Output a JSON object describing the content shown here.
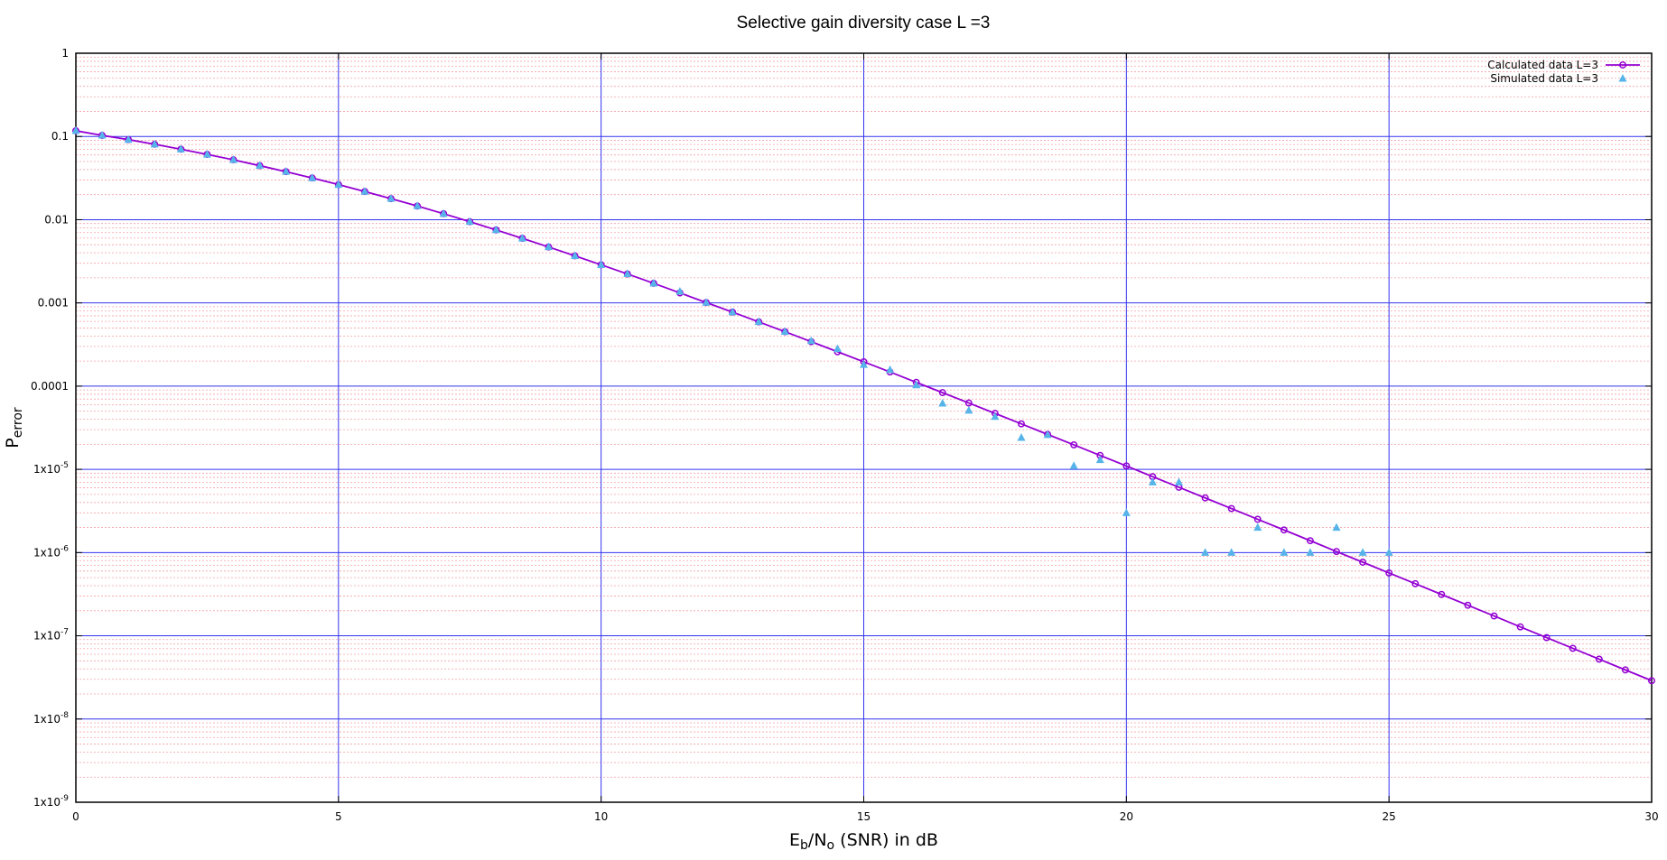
{
  "chart_data": {
    "type": "line",
    "title": "Selective gain diversity case L =3",
    "xlabel": {
      "main": "E",
      "sub1": "b",
      "mid": "/N",
      "sub2": "o",
      "rest": " (SNR) in dB"
    },
    "ylabel": {
      "main": "P",
      "sub": "error"
    },
    "xlim": [
      0,
      30
    ],
    "ylim": [
      1e-09,
      1
    ],
    "yscale": "log",
    "grid": true,
    "legend_position": "top-right",
    "x_ticks": [
      "0",
      "5",
      "10",
      "15",
      "20",
      "25",
      "30"
    ],
    "y_ticks": [
      {
        "base": "1",
        "exp": ""
      },
      {
        "base": "0.1",
        "exp": ""
      },
      {
        "base": "0.01",
        "exp": ""
      },
      {
        "base": "0.001",
        "exp": ""
      },
      {
        "base": "0.0001",
        "exp": ""
      },
      {
        "base": "1x10",
        "exp": "-5"
      },
      {
        "base": "1x10",
        "exp": "-6"
      },
      {
        "base": "1x10",
        "exp": "-7"
      },
      {
        "base": "1x10",
        "exp": "-8"
      },
      {
        "base": "1x10",
        "exp": "-9"
      }
    ],
    "colors": {
      "calculated": "#9400d3",
      "simulated": "#56b4e9",
      "major_grid": "#3333ee",
      "minor_grid": "#f4a0a8"
    },
    "series": [
      {
        "name": "Calculated data L=3",
        "style": "line-circle",
        "x": [
          0,
          0.5,
          1,
          1.5,
          2,
          2.5,
          3,
          3.5,
          4,
          4.5,
          5,
          5.5,
          6,
          6.5,
          7,
          7.5,
          8,
          8.5,
          9,
          9.5,
          10,
          10.5,
          11,
          11.5,
          12,
          12.5,
          13,
          13.5,
          14,
          14.5,
          15,
          15.5,
          16,
          16.5,
          17,
          17.5,
          18,
          18.5,
          19,
          19.5,
          20,
          20.5,
          21,
          21.5,
          22,
          22.5,
          23,
          23.5,
          24,
          24.5,
          25,
          25.5,
          26,
          26.5,
          27,
          27.5,
          28,
          28.5,
          29,
          29.5,
          30
        ],
        "y": [
          0.117,
          0.103,
          0.0917,
          0.0806,
          0.0703,
          0.0609,
          0.0524,
          0.0446,
          0.0378,
          0.0317,
          0.0264,
          0.0218,
          0.0179,
          0.0146,
          0.0118,
          0.00946,
          0.00753,
          0.00597,
          0.0047,
          0.00368,
          0.00287,
          0.00223,
          0.00172,
          0.00132,
          0.00101,
          0.000776,
          0.000592,
          0.000451,
          0.000342,
          0.000259,
          0.000196,
          0.000148,
          0.000111,
          8.35e-05,
          6.27e-05,
          4.7e-05,
          3.52e-05,
          2.63e-05,
          1.97e-05,
          1.47e-05,
          1.1e-05,
          8.17e-06,
          6.09e-06,
          4.54e-06,
          3.38e-06,
          2.51e-06,
          1.87e-06,
          1.39e-06,
          1.03e-06,
          7.66e-07,
          5.69e-07,
          4.23e-07,
          3.14e-07,
          2.33e-07,
          1.73e-07,
          1.28e-07,
          9.52e-08,
          7.07e-08,
          5.24e-08,
          3.89e-08,
          2.89e-08
        ]
      },
      {
        "name": "Simulated data L=3",
        "style": "triangle",
        "x": [
          0,
          0.5,
          1,
          1.5,
          2,
          2.5,
          3,
          3.5,
          4,
          4.5,
          5,
          5.5,
          6,
          6.5,
          7,
          7.5,
          8,
          8.5,
          9,
          9.5,
          10,
          10.5,
          11,
          11.5,
          12,
          12.5,
          13,
          13.5,
          14,
          14.5,
          15,
          15.5,
          16,
          16.5,
          17,
          17.5,
          18,
          18.5,
          19,
          19.5,
          20,
          20.5,
          21,
          21.5,
          22,
          22.5,
          23,
          23.5,
          24,
          24.5,
          25
        ],
        "y": [
          0.117,
          0.103,
          0.0917,
          0.0806,
          0.0703,
          0.0609,
          0.0524,
          0.0446,
          0.0378,
          0.0317,
          0.0264,
          0.0218,
          0.0179,
          0.0146,
          0.0118,
          0.00946,
          0.00753,
          0.00597,
          0.0047,
          0.00368,
          0.00287,
          0.00223,
          0.00172,
          0.00137,
          0.00101,
          0.000776,
          0.000592,
          0.000451,
          0.00035,
          0.00028,
          0.000181,
          0.000157,
          0.000103,
          6.2e-05,
          5.1e-05,
          4.3e-05,
          2.4e-05,
          2.6e-05,
          1.1e-05,
          1.3e-05,
          3e-06,
          7e-06,
          7e-06,
          1e-06,
          1e-06,
          2e-06,
          1e-06,
          1e-06,
          2e-06,
          1e-06,
          1e-06
        ]
      }
    ]
  }
}
